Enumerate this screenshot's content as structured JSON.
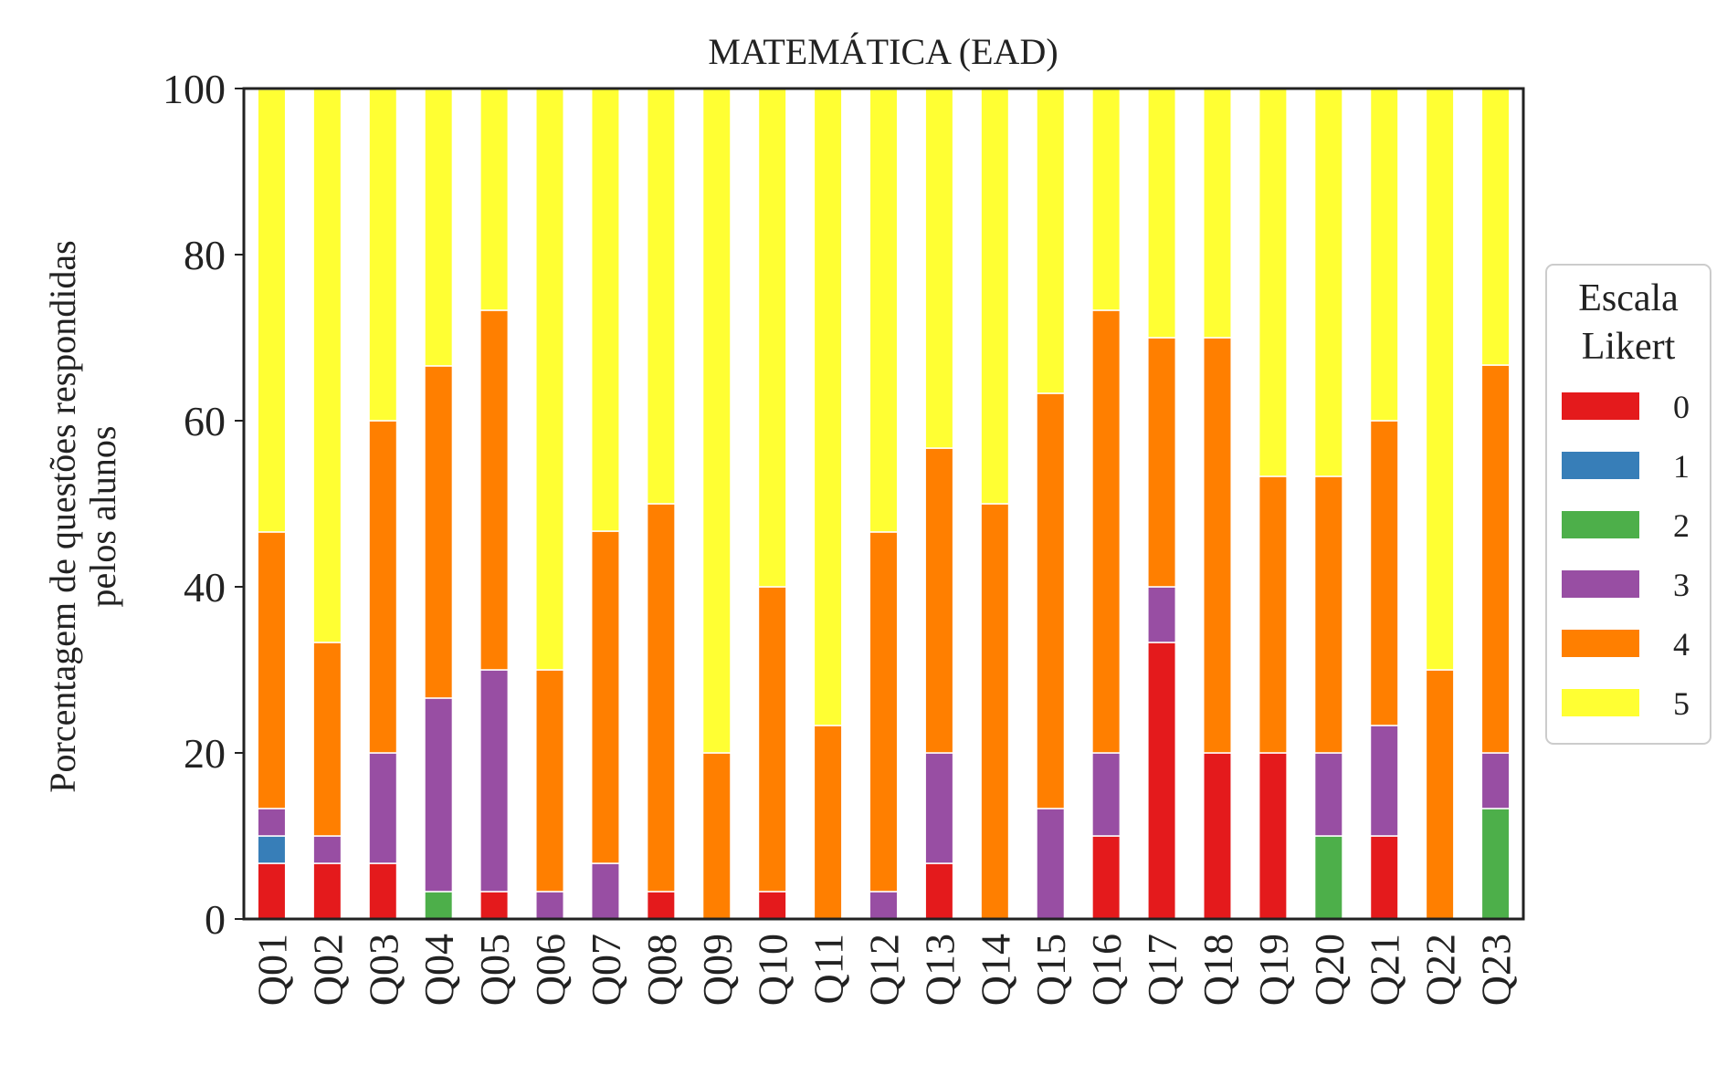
{
  "chart_data": {
    "type": "bar",
    "stacked": true,
    "title": "MATEMÁTICA (EAD)",
    "ylabel": [
      "Porcentagem de questões respondidas",
      "pelos alunos"
    ],
    "xlabel": "",
    "ylim": [
      0,
      100
    ],
    "yticks": [
      "0",
      "20",
      "40",
      "60",
      "80",
      "100"
    ],
    "grid": false,
    "legend": {
      "title": [
        "Escala",
        "Likert"
      ],
      "placement": "right"
    },
    "categories": [
      "Q01",
      "Q02",
      "Q03",
      "Q04",
      "Q05",
      "Q06",
      "Q07",
      "Q08",
      "Q09",
      "Q10",
      "Q11",
      "Q12",
      "Q13",
      "Q14",
      "Q15",
      "Q16",
      "Q17",
      "Q18",
      "Q19",
      "Q20",
      "Q21",
      "Q22",
      "Q23"
    ],
    "series": [
      {
        "name": "0",
        "color": "#e41a1c",
        "values": [
          6.7,
          6.7,
          6.7,
          0,
          3.3,
          0,
          0,
          3.3,
          0,
          3.3,
          0,
          0,
          6.7,
          0,
          0,
          10,
          33.3,
          20,
          20,
          0,
          10,
          0,
          0
        ]
      },
      {
        "name": "1",
        "color": "#377eb8",
        "values": [
          3.3,
          0,
          0,
          0,
          0,
          0,
          0,
          0,
          0,
          0,
          0,
          0,
          0,
          0,
          0,
          0,
          0,
          0,
          0,
          0,
          0,
          0,
          0
        ]
      },
      {
        "name": "2",
        "color": "#4daf4a",
        "values": [
          0,
          0,
          0,
          3.3,
          0,
          0,
          0,
          0,
          0,
          0,
          0,
          0,
          0,
          0,
          0,
          0,
          0,
          0,
          0,
          10,
          0,
          0,
          13.3
        ]
      },
      {
        "name": "3",
        "color": "#984ea3",
        "values": [
          3.3,
          3.3,
          13.3,
          23.3,
          26.7,
          3.3,
          6.7,
          0,
          0,
          0,
          0,
          3.3,
          13.3,
          0,
          13.3,
          10,
          6.7,
          0,
          0,
          10,
          13.3,
          0,
          6.7
        ]
      },
      {
        "name": "4",
        "color": "#ff7f00",
        "values": [
          33.3,
          23.3,
          40,
          40,
          43.3,
          26.7,
          40,
          46.7,
          20,
          36.7,
          23.3,
          43.3,
          36.7,
          50,
          50,
          53.3,
          30,
          50,
          33.3,
          33.3,
          36.7,
          30,
          46.7
        ]
      },
      {
        "name": "5",
        "color": "#ffff33",
        "values": [
          53.3,
          66.7,
          40,
          33.3,
          26.7,
          70,
          53.3,
          50,
          80,
          60,
          76.7,
          53.3,
          43.3,
          50,
          36.7,
          26.7,
          30,
          30,
          46.7,
          46.7,
          40,
          70,
          33.3
        ]
      }
    ]
  }
}
